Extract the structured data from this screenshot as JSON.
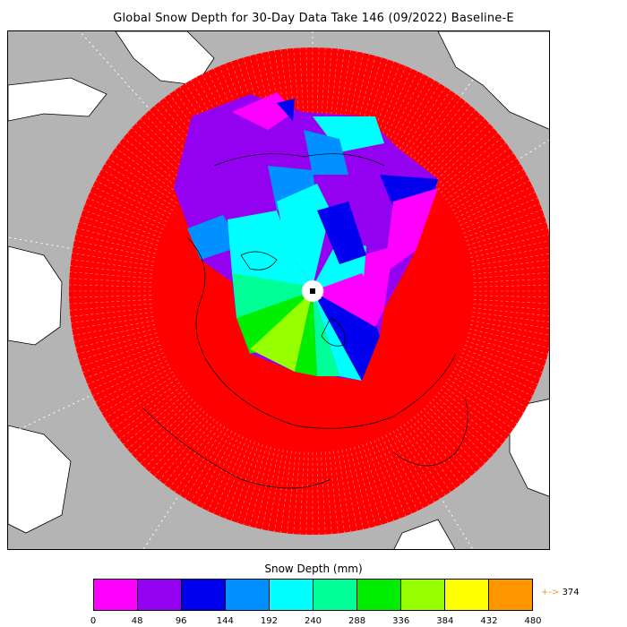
{
  "title": "Global Snow Depth for 30-Day Data Take 146 (09/2022) Baseline-E",
  "legend": {
    "title": "Snow Depth (mm)",
    "ticks": [
      "0",
      "48",
      "96",
      "144",
      "192",
      "240",
      "288",
      "336",
      "384",
      "432",
      "480"
    ],
    "colors": [
      "#ff00ff",
      "#9400f0",
      "#0000ee",
      "#0090ff",
      "#00ffff",
      "#00ff96",
      "#00ee00",
      "#96ff00",
      "#ffff00",
      "#ff9600"
    ],
    "overflow_arrow": "+->",
    "overflow_value": "374"
  },
  "map": {
    "projection": "north polar stereographic",
    "background_color": "#b4b4b4",
    "land_color": "#ffffff",
    "no_data_color": "#ff0000",
    "pole_marker_color": "#ffffff"
  }
}
